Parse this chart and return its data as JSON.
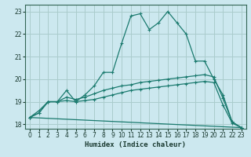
{
  "xlabel": "Humidex (Indice chaleur)",
  "bg_color": "#cce8ef",
  "grid_color": "#aacccc",
  "line_color": "#1a7a6e",
  "xlim": [
    -0.5,
    23.5
  ],
  "ylim": [
    17.8,
    23.3
  ],
  "yticks": [
    18,
    19,
    20,
    21,
    22,
    23
  ],
  "xticks": [
    0,
    1,
    2,
    3,
    4,
    5,
    6,
    7,
    8,
    9,
    10,
    11,
    12,
    13,
    14,
    15,
    16,
    17,
    18,
    19,
    20,
    21,
    22,
    23
  ],
  "series1_x": [
    0,
    1,
    2,
    3,
    4,
    5,
    6,
    7,
    8,
    9,
    10,
    11,
    12,
    13,
    14,
    15,
    16,
    17,
    18,
    19,
    20,
    21,
    22,
    23
  ],
  "series1_y": [
    18.3,
    18.6,
    19.0,
    19.0,
    19.5,
    19.0,
    19.3,
    19.7,
    20.3,
    20.3,
    21.6,
    22.8,
    22.9,
    22.2,
    22.5,
    23.0,
    22.5,
    22.0,
    20.8,
    20.8,
    20.0,
    19.3,
    18.1,
    17.85
  ],
  "series2_x": [
    0,
    1,
    2,
    3,
    4,
    5,
    6,
    7,
    8,
    9,
    10,
    11,
    12,
    13,
    14,
    15,
    16,
    17,
    18,
    19,
    20,
    21,
    22,
    23
  ],
  "series2_y": [
    18.3,
    18.5,
    19.0,
    19.0,
    19.2,
    19.1,
    19.2,
    19.35,
    19.5,
    19.6,
    19.7,
    19.75,
    19.85,
    19.9,
    19.95,
    20.0,
    20.05,
    20.1,
    20.15,
    20.2,
    20.1,
    19.15,
    18.1,
    17.85
  ],
  "series3_x": [
    0,
    1,
    2,
    3,
    4,
    5,
    6,
    7,
    8,
    9,
    10,
    11,
    12,
    13,
    14,
    15,
    16,
    17,
    18,
    19,
    20,
    21,
    22,
    23
  ],
  "series3_y": [
    18.3,
    18.5,
    19.0,
    19.0,
    19.05,
    19.0,
    19.05,
    19.1,
    19.2,
    19.3,
    19.4,
    19.5,
    19.55,
    19.6,
    19.65,
    19.7,
    19.75,
    19.8,
    19.85,
    19.9,
    19.85,
    18.85,
    18.05,
    17.85
  ],
  "series4_x": [
    0,
    23
  ],
  "series4_y": [
    18.3,
    17.85
  ]
}
